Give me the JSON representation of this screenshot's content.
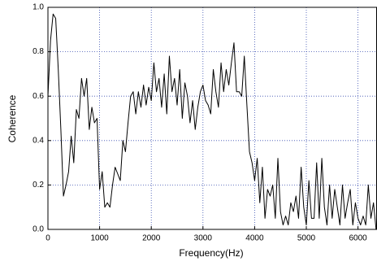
{
  "chart_data": {
    "type": "line",
    "x_label": "Frequency(Hz)",
    "y_label": "Coherence",
    "x": [
      0,
      50,
      100,
      150,
      200,
      250,
      300,
      350,
      400,
      450,
      500,
      550,
      600,
      650,
      700,
      750,
      800,
      850,
      900,
      950,
      1000,
      1050,
      1100,
      1150,
      1200,
      1250,
      1300,
      1350,
      1400,
      1450,
      1500,
      1550,
      1600,
      1650,
      1700,
      1750,
      1800,
      1850,
      1900,
      1950,
      2000,
      2050,
      2100,
      2150,
      2200,
      2250,
      2300,
      2350,
      2400,
      2450,
      2500,
      2550,
      2600,
      2650,
      2700,
      2750,
      2800,
      2850,
      2900,
      2950,
      3000,
      3050,
      3100,
      3150,
      3200,
      3250,
      3300,
      3350,
      3400,
      3450,
      3500,
      3550,
      3600,
      3650,
      3700,
      3750,
      3800,
      3850,
      3900,
      3950,
      4000,
      4050,
      4100,
      4150,
      4200,
      4250,
      4300,
      4350,
      4400,
      4450,
      4500,
      4550,
      4600,
      4650,
      4700,
      4750,
      4800,
      4850,
      4900,
      4950,
      5000,
      5050,
      5100,
      5150,
      5200,
      5250,
      5300,
      5350,
      5400,
      5450,
      5500,
      5550,
      5600,
      5650,
      5700,
      5750,
      5800,
      5850,
      5900,
      5950,
      6000,
      6050,
      6100,
      6150,
      6200,
      6250,
      6300,
      6350
    ],
    "series": [
      {
        "color": "#000000",
        "values": [
          0.6,
          0.85,
          0.97,
          0.95,
          0.72,
          0.45,
          0.15,
          0.2,
          0.26,
          0.42,
          0.3,
          0.54,
          0.5,
          0.68,
          0.6,
          0.68,
          0.45,
          0.55,
          0.48,
          0.5,
          0.18,
          0.26,
          0.1,
          0.12,
          0.1,
          0.2,
          0.28,
          0.25,
          0.22,
          0.4,
          0.35,
          0.48,
          0.6,
          0.62,
          0.52,
          0.62,
          0.55,
          0.65,
          0.56,
          0.64,
          0.58,
          0.75,
          0.62,
          0.68,
          0.55,
          0.7,
          0.52,
          0.78,
          0.62,
          0.68,
          0.56,
          0.72,
          0.5,
          0.66,
          0.6,
          0.48,
          0.58,
          0.45,
          0.55,
          0.62,
          0.65,
          0.58,
          0.56,
          0.52,
          0.72,
          0.62,
          0.55,
          0.75,
          0.62,
          0.72,
          0.65,
          0.75,
          0.84,
          0.62,
          0.62,
          0.6,
          0.78,
          0.56,
          0.35,
          0.3,
          0.22,
          0.32,
          0.12,
          0.28,
          0.05,
          0.18,
          0.15,
          0.2,
          0.05,
          0.32,
          0.08,
          0.02,
          0.06,
          0.02,
          0.12,
          0.08,
          0.15,
          0.05,
          0.28,
          0.1,
          0.02,
          0.22,
          0.05,
          0.05,
          0.3,
          0.05,
          0.32,
          0.1,
          0.02,
          0.2,
          0.05,
          0.18,
          0.1,
          0.02,
          0.2,
          0.05,
          0.12,
          0.18,
          0.02,
          0.12,
          0.05,
          0.02,
          0.06,
          0.02,
          0.2,
          0.05,
          0.12,
          0.0
        ]
      }
    ],
    "xlim": [
      0,
      6360
    ],
    "xticks": [
      0,
      1000,
      2000,
      3000,
      4000,
      5000,
      6000
    ],
    "ylim": [
      0,
      1
    ],
    "yticks": [
      {
        "value": 0,
        "label": "0.0"
      },
      0.2,
      0.4,
      0.6,
      0.8,
      {
        "value": 1,
        "label": "1.0"
      }
    ],
    "grid": true
  }
}
